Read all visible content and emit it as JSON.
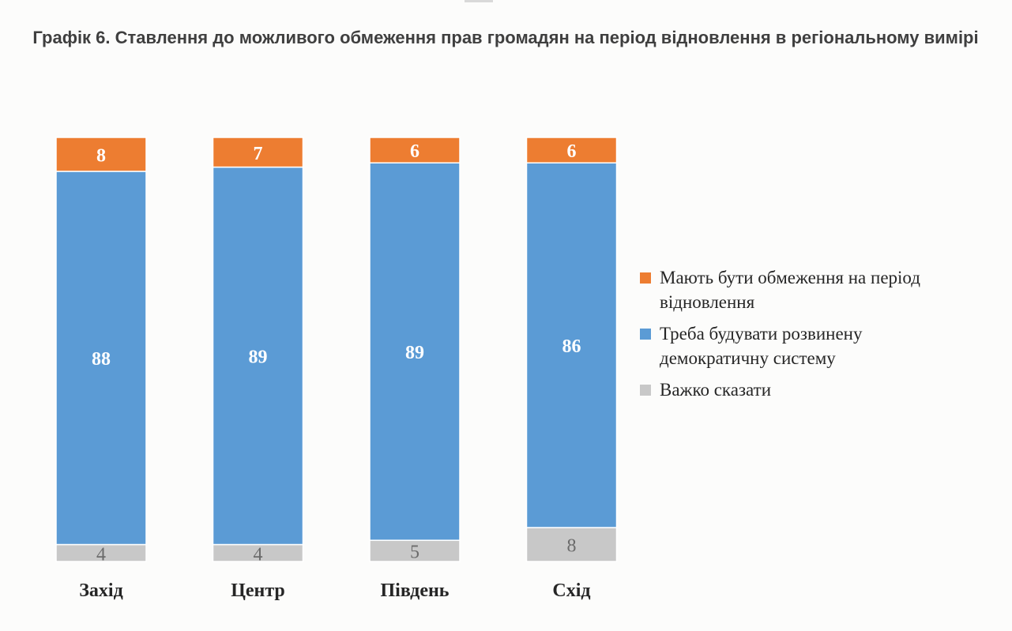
{
  "chart_data": {
    "type": "bar",
    "stacked": true,
    "title": "Графік 6. Ставлення до можливого обмеження прав громадян на період відновлення в регіональному вимірі",
    "categories": [
      "Захід",
      "Центр",
      "Південь",
      "Схід"
    ],
    "series": [
      {
        "name": "Важко сказати",
        "values": [
          4,
          4,
          5,
          8
        ],
        "color": "#c8c8c8",
        "label_color": "#6b6b6b"
      },
      {
        "name": "Треба будувати розвинену демократичну систему",
        "values": [
          88,
          89,
          89,
          86
        ],
        "color": "#5b9bd5",
        "label_color": "#ffffff"
      },
      {
        "name": "Мають бути обмеження на період відновлення",
        "values": [
          8,
          7,
          6,
          6
        ],
        "color": "#ed7d31",
        "label_color": "#ffffff"
      }
    ],
    "legend_order": [
      2,
      1,
      0
    ],
    "legend_position": "right",
    "ylim": [
      0,
      100
    ],
    "grid": false
  }
}
